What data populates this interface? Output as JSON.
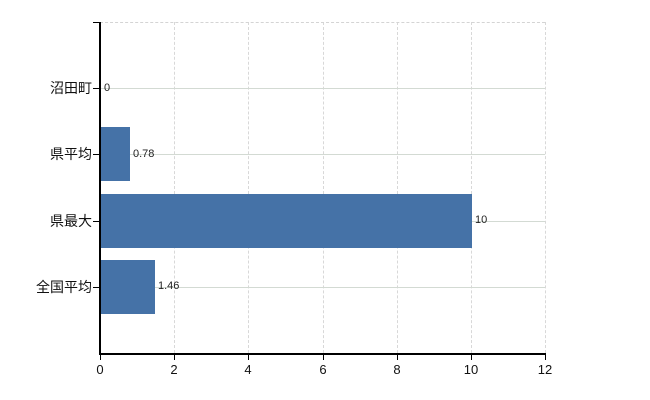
{
  "chart_data": {
    "type": "bar",
    "orientation": "horizontal",
    "title": "",
    "xlabel": "",
    "ylabel": "",
    "categories": [
      "沼田町",
      "県平均",
      "県最大",
      "全国平均"
    ],
    "values": [
      0,
      0.78,
      10,
      1.46
    ],
    "value_labels": [
      "0",
      "0.78",
      "10",
      "1.46"
    ],
    "xlim": [
      0,
      12
    ],
    "xticks": [
      0,
      2,
      4,
      6,
      8,
      10,
      12
    ],
    "xtick_labels": [
      "0",
      "2",
      "4",
      "6",
      "8",
      "10",
      "12"
    ],
    "grid": true,
    "legend": false,
    "colors": {
      "bar": "#4572a7",
      "axis": "#000000",
      "gridline_vertical": "#d8d8d8",
      "gridline_horizontal": "#d3dad3",
      "frame_dashed": "#d4d4d4",
      "background": "#ffffff",
      "category_label": "#111111",
      "value_label": "#222222",
      "tick_label": "#111111"
    }
  }
}
